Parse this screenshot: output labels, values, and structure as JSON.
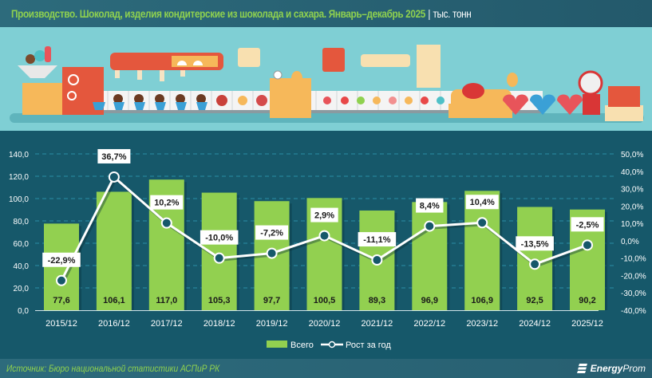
{
  "header": {
    "title": "Производство. Шоколад, изделия кондитерские из шоколада и сахара. Январь–декабрь 2025",
    "separator": "|",
    "unit": "тыс. тонн"
  },
  "banner": {
    "description": "Illustration of a confectionery production line with cupcakes, lollipops, candy hearts and machinery"
  },
  "colors": {
    "background": "#16586a",
    "bar": "#92d050",
    "line": "#ffffff",
    "title": "#8fd14f",
    "grid": "#2b8ea6"
  },
  "chart_data": {
    "type": "bar+line",
    "title": "Производство. Шоколад, изделия кондитерские из шоколада и сахара. Январь–декабрь 2025",
    "unit": "тыс. тонн",
    "categories": [
      "2015/12",
      "2016/12",
      "2017/12",
      "2018/12",
      "2019/12",
      "2020/12",
      "2021/12",
      "2022/12",
      "2023/12",
      "2024/12",
      "2025/12"
    ],
    "series": [
      {
        "name": "Всего",
        "type": "bar",
        "axis": "left",
        "values": [
          77.6,
          106.1,
          117.0,
          105.3,
          97.7,
          100.5,
          89.3,
          96.9,
          106.9,
          92.5,
          90.2
        ],
        "labels": [
          "77,6",
          "106,1",
          "117,0",
          "105,3",
          "97,7",
          "100,5",
          "89,3",
          "96,9",
          "106,9",
          "92,5",
          "90,2"
        ]
      },
      {
        "name": "Рост за год",
        "type": "line",
        "axis": "right",
        "values": [
          -22.9,
          36.7,
          10.2,
          -10.0,
          -7.2,
          2.9,
          -11.1,
          8.4,
          10.4,
          -13.5,
          -2.5
        ],
        "labels": [
          "-22,9%",
          "36,7%",
          "10,2%",
          "-10,0%",
          "-7,2%",
          "2,9%",
          "-11,1%",
          "8,4%",
          "10,4%",
          "-13,5%",
          "-2,5%"
        ]
      }
    ],
    "left_axis": {
      "range": [
        0,
        140
      ],
      "ticks": [
        "0,0",
        "20,0",
        "40,0",
        "60,0",
        "80,0",
        "100,0",
        "120,0",
        "140,0"
      ]
    },
    "right_axis": {
      "range": [
        -40,
        50
      ],
      "ticks": [
        "-40,0%",
        "-30,0%",
        "-20,0%",
        "-10,0%",
        "0,0%",
        "10,0%",
        "20,0%",
        "30,0%",
        "40,0%",
        "50,0%"
      ]
    },
    "grid": true,
    "legend_position": "bottom-center",
    "legend": [
      {
        "label": "Всего",
        "kind": "bar"
      },
      {
        "label": "Рост за год",
        "kind": "line-marker"
      }
    ]
  },
  "footer": {
    "source": "Источник: Бюро национальной статистики АСПиР РК",
    "logo_bold": "Energy",
    "logo_light": "Prom"
  }
}
